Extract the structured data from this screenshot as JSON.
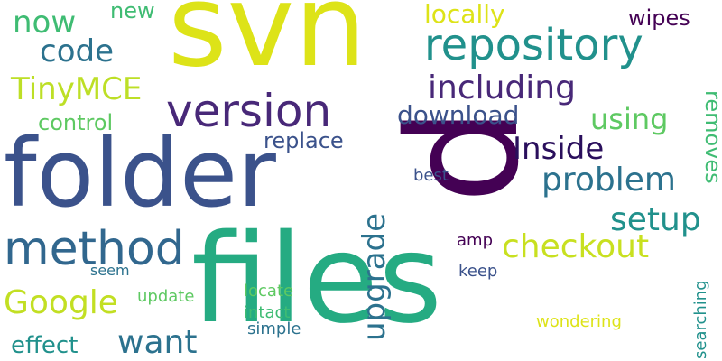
{
  "colors": {
    "yellow": "#dde318",
    "green_yellow": "#bddf26",
    "lime": "#84d44b",
    "light_green": "#5ec962",
    "green": "#3fbc73",
    "teal": "#21918c",
    "teal_dark": "#2c728e",
    "blue": "#3b528b",
    "indigo": "#482878",
    "purple": "#440154"
  },
  "words": [
    {
      "text": "svn"
    },
    {
      "text": "files"
    },
    {
      "text": "folder"
    },
    {
      "text": "p"
    },
    {
      "text": "repository"
    },
    {
      "text": "version"
    },
    {
      "text": "method"
    },
    {
      "text": "including"
    },
    {
      "text": "Inside"
    },
    {
      "text": "problem"
    },
    {
      "text": "setup"
    },
    {
      "text": "checkout"
    },
    {
      "text": "upgrade"
    },
    {
      "text": "Google"
    },
    {
      "text": "want"
    },
    {
      "text": "TinyMCE"
    },
    {
      "text": "code"
    },
    {
      "text": "now"
    },
    {
      "text": "download"
    },
    {
      "text": "using"
    },
    {
      "text": "locally"
    },
    {
      "text": "replace"
    },
    {
      "text": "control"
    },
    {
      "text": "removes"
    },
    {
      "text": "effect"
    },
    {
      "text": "new"
    },
    {
      "text": "wipes"
    },
    {
      "text": "best"
    },
    {
      "text": "amp"
    },
    {
      "text": "keep"
    },
    {
      "text": "seem"
    },
    {
      "text": "update"
    },
    {
      "text": "locate"
    },
    {
      "text": "intact"
    },
    {
      "text": "simple"
    },
    {
      "text": "wondering"
    },
    {
      "text": "searching"
    }
  ]
}
